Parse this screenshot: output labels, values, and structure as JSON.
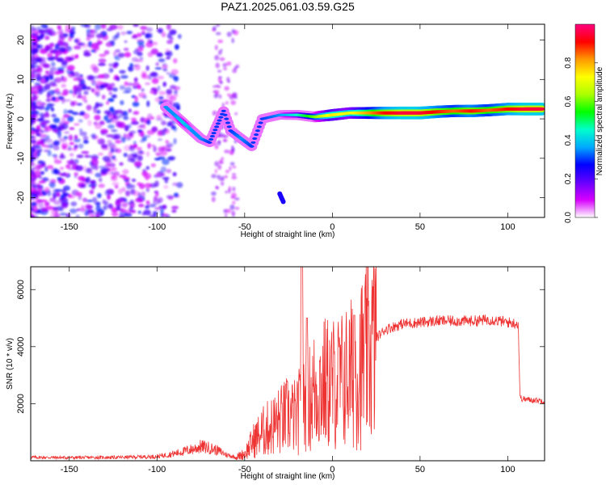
{
  "title": "PAZ1.2025.061.03.59.G25",
  "chart_data": [
    {
      "type": "heatmap",
      "xlabel": "Height of straight line (km)",
      "ylabel": "Frequency (Hz)",
      "xlim": [
        -172,
        121
      ],
      "ylim": [
        -25,
        24
      ],
      "xticks": [
        -150,
        -100,
        -50,
        0,
        50,
        100
      ],
      "yticks": [
        -20,
        -10,
        0,
        10,
        20
      ],
      "colorbar": {
        "label": "Normalized spectral amplitude",
        "range": [
          0,
          1
        ],
        "ticks": [
          "0.0",
          "0.2",
          "0.4",
          "0.6",
          "0.8"
        ],
        "colors": [
          "#ffffff",
          "#d700ff",
          "#6600ff",
          "#0000ff",
          "#00aaff",
          "#00ffcc",
          "#00ff00",
          "#aaff00",
          "#ffff00",
          "#ff9900",
          "#ff0000",
          "#ff0080"
        ]
      },
      "ridge": [
        {
          "x": -95,
          "y": 3,
          "amp": 0.35
        },
        {
          "x": -90,
          "y": 1,
          "amp": 0.35
        },
        {
          "x": -85,
          "y": -1,
          "amp": 0.4
        },
        {
          "x": -80,
          "y": -3,
          "amp": 0.35
        },
        {
          "x": -75,
          "y": -5,
          "amp": 0.35
        },
        {
          "x": -70,
          "y": -6,
          "amp": 0.3
        },
        {
          "x": -62,
          "y": 2,
          "amp": 0.3
        },
        {
          "x": -58,
          "y": -3,
          "amp": 0.3
        },
        {
          "x": -52,
          "y": -5,
          "amp": 0.35
        },
        {
          "x": -46,
          "y": -7,
          "amp": 0.3
        },
        {
          "x": -40,
          "y": 0,
          "amp": 0.3
        },
        {
          "x": -30,
          "y": 1,
          "amp": 0.35
        },
        {
          "x": -20,
          "y": 1,
          "amp": 0.45
        },
        {
          "x": -10,
          "y": 0.5,
          "amp": 0.6
        },
        {
          "x": 0,
          "y": 1,
          "amp": 0.75
        },
        {
          "x": 10,
          "y": 1.5,
          "amp": 0.7
        },
        {
          "x": 20,
          "y": 1.5,
          "amp": 0.8
        },
        {
          "x": 30,
          "y": 1.5,
          "amp": 0.9
        },
        {
          "x": 40,
          "y": 1.5,
          "amp": 0.95
        },
        {
          "x": 50,
          "y": 1.5,
          "amp": 0.95
        },
        {
          "x": 60,
          "y": 1.8,
          "amp": 0.9
        },
        {
          "x": 70,
          "y": 2,
          "amp": 0.85
        },
        {
          "x": 80,
          "y": 2,
          "amp": 0.9
        },
        {
          "x": 90,
          "y": 2.2,
          "amp": 0.85
        },
        {
          "x": 100,
          "y": 2.5,
          "amp": 0.9
        },
        {
          "x": 110,
          "y": 2.5,
          "amp": 0.95
        },
        {
          "x": 120,
          "y": 2.5,
          "amp": 0.95
        }
      ]
    },
    {
      "type": "line",
      "xlabel": "Height of straight line (km)",
      "ylabel": "SNR (10 * v/v)",
      "xlim": [
        -172,
        121
      ],
      "ylim": [
        0,
        6800
      ],
      "xticks": [
        -150,
        -100,
        -50,
        0,
        50,
        100
      ],
      "yticks": [
        2000,
        4000,
        6000
      ],
      "color": "#ee3333",
      "series": [
        {
          "x": [
            -172,
            -150,
            -120,
            -100,
            -90,
            -80,
            -75,
            -70,
            -65,
            -60,
            -55,
            -50,
            -45,
            -40,
            -35,
            -30,
            -25,
            -20,
            -17,
            -15,
            -10,
            -5,
            0,
            5,
            10,
            15,
            20,
            25,
            30,
            40,
            50,
            60,
            70,
            80,
            90,
            100,
            106,
            107,
            110,
            121
          ],
          "y": [
            120,
            110,
            120,
            150,
            250,
            400,
            500,
            450,
            350,
            200,
            120,
            250,
            700,
            1000,
            1200,
            1400,
            1600,
            1500,
            2200,
            2000,
            2500,
            2700,
            2700,
            2800,
            3000,
            3300,
            3700,
            4300,
            4600,
            4800,
            4850,
            4900,
            4900,
            4900,
            4950,
            4850,
            4800,
            2200,
            2150,
            2100
          ]
        }
      ]
    }
  ]
}
